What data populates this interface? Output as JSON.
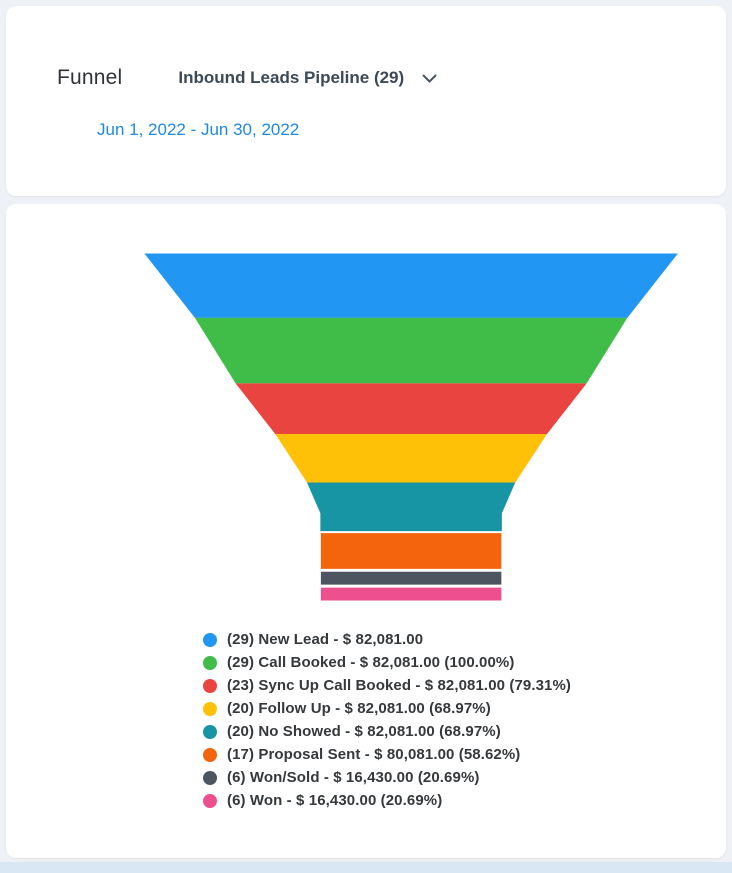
{
  "header": {
    "title": "Funnel",
    "pipeline_selector": "Inbound Leads Pipeline (29)",
    "date_range": "Jun 1, 2022 - Jun 30, 2022"
  },
  "chart_data": {
    "type": "funnel",
    "title": "Inbound Leads Pipeline (29)",
    "date_range": "Jun 1, 2022 - Jun 30, 2022",
    "legend_position": "bottom",
    "stages": [
      {
        "count": 29,
        "label": "New Lead",
        "amount": "$ 82,081.00",
        "percent": "",
        "color": "#2196f3",
        "legend": "(29) New Lead - $ 82,081.00"
      },
      {
        "count": 29,
        "label": "Call Booked",
        "amount": "$ 82,081.00",
        "percent": "100.00%",
        "color": "#40bd49",
        "legend": "(29) Call Booked - $ 82,081.00 (100.00%)"
      },
      {
        "count": 23,
        "label": "Sync Up Call Booked",
        "amount": "$ 82,081.00",
        "percent": "79.31%",
        "color": "#ea4441",
        "legend": "(23) Sync Up Call Booked - $ 82,081.00 (79.31%)"
      },
      {
        "count": 20,
        "label": "Follow Up",
        "amount": "$ 82,081.00",
        "percent": "68.97%",
        "color": "#ffc107",
        "legend": "(20) Follow Up - $ 82,081.00 (68.97%)"
      },
      {
        "count": 20,
        "label": "No Showed",
        "amount": "$ 82,081.00",
        "percent": "68.97%",
        "color": "#1795a4",
        "legend": "(20) No Showed - $ 82,081.00 (68.97%)"
      },
      {
        "count": 17,
        "label": "Proposal Sent",
        "amount": "$ 80,081.00",
        "percent": "58.62%",
        "color": "#f4640d",
        "legend": "(17) Proposal Sent - $ 80,081.00 (58.62%)"
      },
      {
        "count": 6,
        "label": "Won/Sold",
        "amount": "$ 16,430.00",
        "percent": "20.69%",
        "color": "#4d5660",
        "legend": "(6) Won/Sold - $ 16,430.00 (20.69%)"
      },
      {
        "count": 6,
        "label": "Won",
        "amount": "$ 16,430.00",
        "percent": "20.69%",
        "color": "#ee4f8e",
        "legend": "(6) Won - $ 16,430.00 (20.69%)"
      }
    ]
  }
}
